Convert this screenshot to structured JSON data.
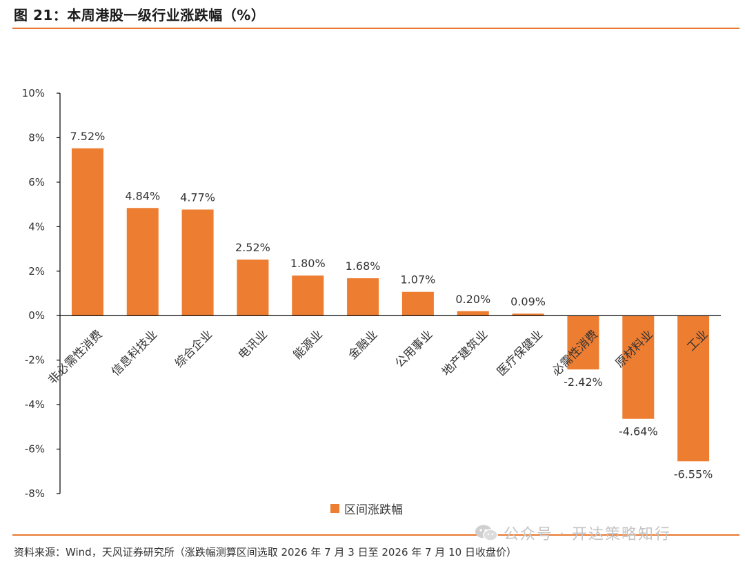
{
  "figure_title": "图 21：本周港股一级行业涨跌幅（%）",
  "source_note": "资料来源：Wind，天风证券研究所（涨跌幅测算区间选取 2026 年 7 月 3 日至 2026 年 7 月 10 日收盘价）",
  "watermark": {
    "text": "公众号 · 开达策略知行",
    "icon": "wechat-icon"
  },
  "colors": {
    "bar": "#ED7D31",
    "rule": "#E8782F"
  },
  "chart_data": {
    "type": "bar",
    "categories": [
      "非必需性消费",
      "信息科技业",
      "综合企业",
      "电讯业",
      "能源业",
      "金融业",
      "公用事业",
      "地产建筑业",
      "医疗保健业",
      "必需性消费",
      "原材料业",
      "工业"
    ],
    "series": [
      {
        "name": "区间涨跌幅",
        "values": [
          7.52,
          4.84,
          4.77,
          2.52,
          1.8,
          1.68,
          1.07,
          0.2,
          0.09,
          -2.42,
          -4.64,
          -6.55
        ]
      }
    ],
    "data_labels": [
      "7.52%",
      "4.84%",
      "4.77%",
      "2.52%",
      "1.80%",
      "1.68%",
      "1.07%",
      "0.20%",
      "0.09%",
      "-2.42%",
      "-4.64%",
      "-6.55%"
    ],
    "yticks": [
      10,
      8,
      6,
      4,
      2,
      0,
      -2,
      -4,
      -6,
      -8
    ],
    "ytick_labels": [
      "10%",
      "8%",
      "6%",
      "4%",
      "2%",
      "0%",
      "-2%",
      "-4%",
      "-6%",
      "-8%"
    ],
    "ylim": [
      -8,
      10
    ],
    "legend": "bottom",
    "grid": false
  }
}
